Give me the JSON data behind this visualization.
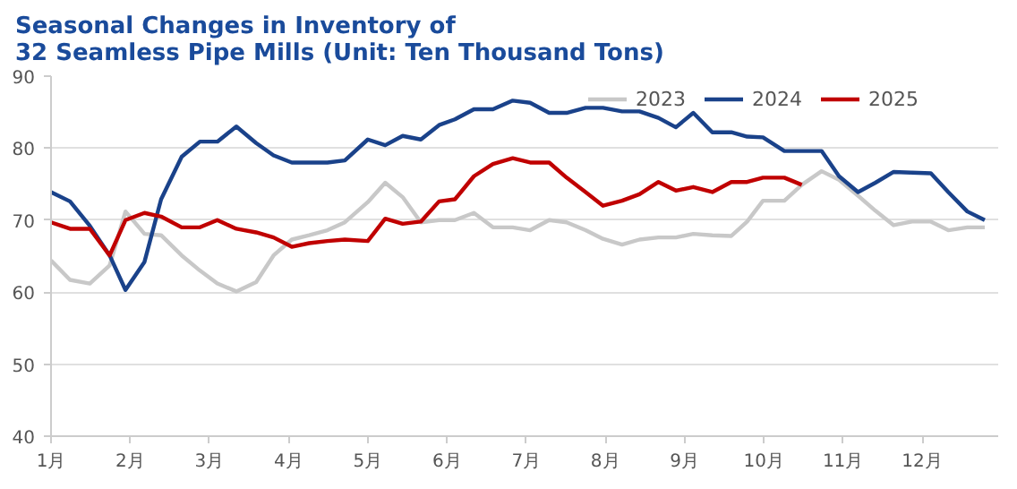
{
  "chart_data": {
    "type": "line",
    "title": "Seasonal Changes in Inventory of\n32 Seamless Pipe Mills (Unit: Ten Thousand Tons)",
    "x": [
      1.0,
      1.24,
      1.49,
      1.74,
      1.94,
      2.18,
      2.39,
      2.65,
      2.88,
      3.1,
      3.34,
      3.59,
      3.81,
      4.04,
      4.26,
      4.49,
      4.71,
      5.0,
      5.22,
      5.44,
      5.67,
      5.9,
      6.1,
      6.34,
      6.58,
      6.83,
      7.05,
      7.29,
      7.51,
      7.75,
      7.97,
      8.21,
      8.43,
      8.67,
      8.89,
      9.11,
      9.35,
      9.59,
      9.79,
      9.99,
      10.26,
      10.48,
      10.73,
      10.95,
      11.19,
      11.41,
      11.64,
      11.87,
      12.11,
      12.33,
      12.57,
      12.79
    ],
    "series": [
      {
        "name": "2023",
        "color": "#c8c8c8",
        "values": [
          64.4,
          61.7,
          61.2,
          63.7,
          71.2,
          68.1,
          67.9,
          65.1,
          63.0,
          61.2,
          60.1,
          61.4,
          65.1,
          67.3,
          67.9,
          68.6,
          69.7,
          72.5,
          75.2,
          73.2,
          69.7,
          70.0,
          70.0,
          71.0,
          69.0,
          69.0,
          68.6,
          70.0,
          69.7,
          68.6,
          67.4,
          66.6,
          67.3,
          67.6,
          67.6,
          68.1,
          67.9,
          67.8,
          69.8,
          72.7,
          72.7,
          74.9,
          76.8,
          75.6,
          73.4,
          71.3,
          69.3,
          69.8,
          69.8,
          68.6,
          69.0,
          69.0
        ]
      },
      {
        "name": "2024",
        "color": "#1a428a",
        "values": [
          73.9,
          72.6,
          69.2,
          65.1,
          60.3,
          64.2,
          72.9,
          78.8,
          80.9,
          80.9,
          83.0,
          80.7,
          79.0,
          78.0,
          78.0,
          78.0,
          78.3,
          81.2,
          80.4,
          81.7,
          81.2,
          83.2,
          84.0,
          85.4,
          85.4,
          86.6,
          86.3,
          84.9,
          84.9,
          85.6,
          85.6,
          85.1,
          85.1,
          84.2,
          82.9,
          84.9,
          82.2,
          82.2,
          81.6,
          81.5,
          79.6,
          79.6,
          79.6,
          76.1,
          73.9,
          75.2,
          76.7,
          76.6,
          76.5,
          73.9,
          71.2,
          70.0
        ]
      },
      {
        "name": "2025",
        "color": "#c00000",
        "values": [
          69.7,
          68.8,
          68.8,
          65.1,
          70.0,
          71.0,
          70.5,
          69.0,
          69.0,
          70.0,
          68.8,
          68.3,
          67.6,
          66.3,
          66.8,
          67.1,
          67.3,
          67.1,
          70.2,
          69.5,
          69.8,
          72.6,
          72.9,
          76.1,
          77.8,
          78.6,
          78.0,
          78.0,
          75.9,
          73.9,
          72.0,
          72.7,
          73.6,
          75.3,
          74.1,
          74.6,
          73.9,
          75.3,
          75.3,
          75.9,
          75.9,
          74.9,
          null,
          null,
          null,
          null,
          null,
          null,
          null,
          null,
          null,
          null
        ]
      }
    ],
    "xlim": [
      1,
      12.96
    ],
    "xticks": [
      {
        "value": 1,
        "label": "1月"
      },
      {
        "value": 2,
        "label": "2月"
      },
      {
        "value": 3,
        "label": "3月"
      },
      {
        "value": 4,
        "label": "4月"
      },
      {
        "value": 5,
        "label": "5月"
      },
      {
        "value": 6,
        "label": "6月"
      },
      {
        "value": 7,
        "label": "7月"
      },
      {
        "value": 8,
        "label": "8月"
      },
      {
        "value": 9,
        "label": "9月"
      },
      {
        "value": 10,
        "label": "10月"
      },
      {
        "value": 11,
        "label": "11月"
      },
      {
        "value": 12,
        "label": "12月"
      }
    ],
    "ylim": [
      40,
      90
    ],
    "yticks": [
      40,
      50,
      60,
      70,
      80,
      90
    ],
    "grid": "y",
    "legend": "top right",
    "marker": "none",
    "line_style": "solid"
  }
}
